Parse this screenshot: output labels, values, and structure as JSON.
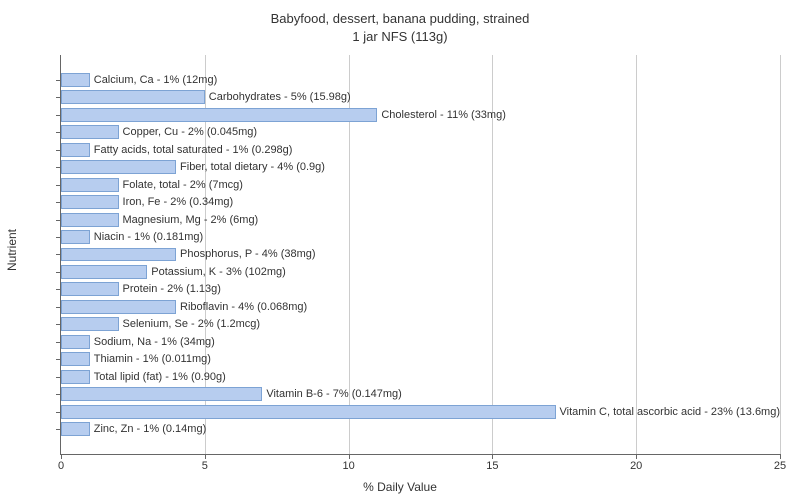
{
  "title_line1": "Babyfood, dessert, banana pudding, strained",
  "title_line2": "1 jar NFS (113g)",
  "y_axis_label": "Nutrient",
  "x_axis_label": "% Daily Value",
  "x_max": 25,
  "x_ticks": [
    0,
    5,
    10,
    15,
    20,
    25
  ],
  "bar_fill": "#b7cdef",
  "bar_border": "#7da3d4",
  "grid_color": "#cccccc",
  "background_color": "#ffffff",
  "title_fontsize": 13,
  "label_fontsize": 12,
  "tick_fontsize": 11,
  "bar_label_fontsize": 11,
  "nutrients": [
    {
      "label": "Calcium, Ca - 1% (12mg)",
      "value": 1
    },
    {
      "label": "Carbohydrates - 5% (15.98g)",
      "value": 5
    },
    {
      "label": "Cholesterol - 11% (33mg)",
      "value": 11
    },
    {
      "label": "Copper, Cu - 2% (0.045mg)",
      "value": 2
    },
    {
      "label": "Fatty acids, total saturated - 1% (0.298g)",
      "value": 1
    },
    {
      "label": "Fiber, total dietary - 4% (0.9g)",
      "value": 4
    },
    {
      "label": "Folate, total - 2% (7mcg)",
      "value": 2
    },
    {
      "label": "Iron, Fe - 2% (0.34mg)",
      "value": 2
    },
    {
      "label": "Magnesium, Mg - 2% (6mg)",
      "value": 2
    },
    {
      "label": "Niacin - 1% (0.181mg)",
      "value": 1
    },
    {
      "label": "Phosphorus, P - 4% (38mg)",
      "value": 4
    },
    {
      "label": "Potassium, K - 3% (102mg)",
      "value": 3
    },
    {
      "label": "Protein - 2% (1.13g)",
      "value": 2
    },
    {
      "label": "Riboflavin - 4% (0.068mg)",
      "value": 4
    },
    {
      "label": "Selenium, Se - 2% (1.2mcg)",
      "value": 2
    },
    {
      "label": "Sodium, Na - 1% (34mg)",
      "value": 1
    },
    {
      "label": "Thiamin - 1% (0.011mg)",
      "value": 1
    },
    {
      "label": "Total lipid (fat) - 1% (0.90g)",
      "value": 1
    },
    {
      "label": "Vitamin B-6 - 7% (0.147mg)",
      "value": 7
    },
    {
      "label": "Vitamin C, total ascorbic acid - 23% (13.6mg)",
      "value": 23
    },
    {
      "label": "Zinc, Zn - 1% (0.14mg)",
      "value": 1
    }
  ]
}
